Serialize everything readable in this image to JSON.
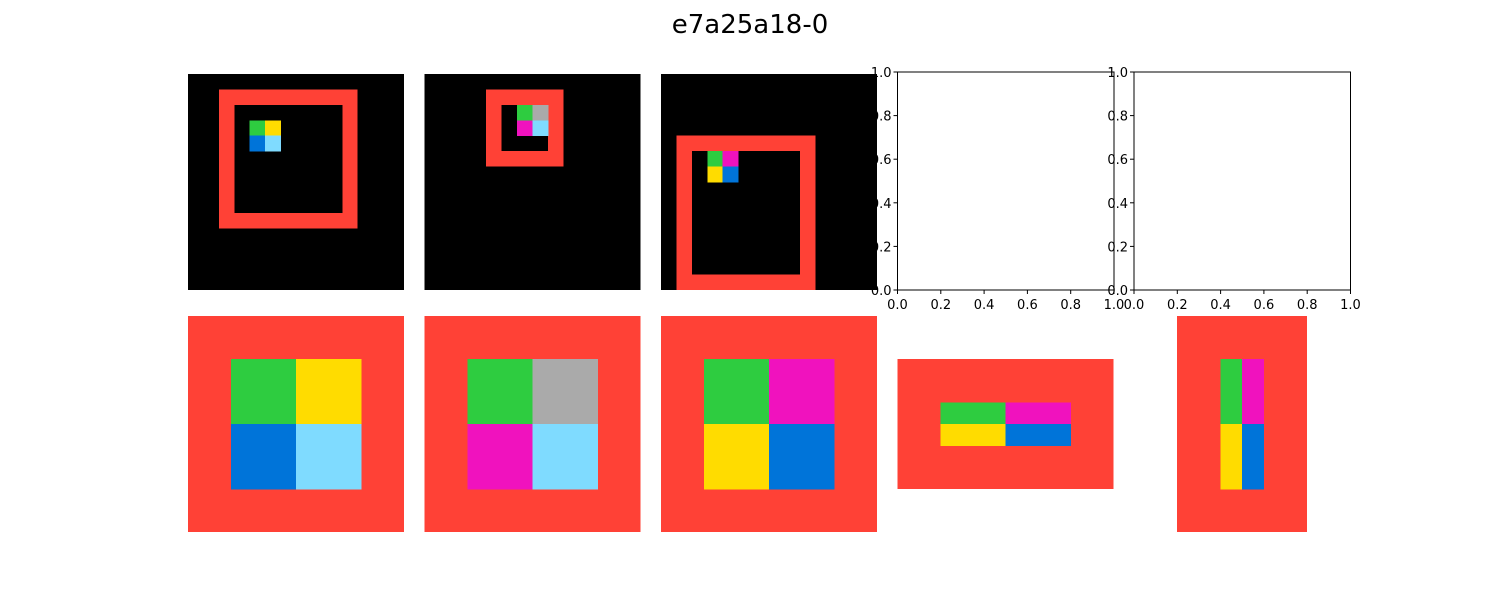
{
  "title": "e7a25a18-0",
  "colors": {
    "0": "#000000",
    "1": "#0074D9",
    "2": "#FF4136",
    "3": "#2ECC40",
    "4": "#FFDC00",
    "5": "#AAAAAA",
    "6": "#F012BE",
    "7": "#FF851B",
    "8": "#7FDBFF",
    "9": "#870C25"
  },
  "grids": {
    "inputs": [
      {
        "rows": 14,
        "cols": 14,
        "frame": {
          "r0": 1,
          "c0": 2,
          "r1": 10,
          "c1": 11
        },
        "cells": [
          {
            "r": 3,
            "c": 4,
            "v": 3
          },
          {
            "r": 3,
            "c": 5,
            "v": 4
          },
          {
            "r": 4,
            "c": 4,
            "v": 1
          },
          {
            "r": 4,
            "c": 5,
            "v": 8
          }
        ]
      },
      {
        "rows": 14,
        "cols": 14,
        "frame": {
          "r0": 1,
          "c0": 4,
          "r1": 6,
          "c1": 9
        },
        "cells": [
          {
            "r": 2,
            "c": 6,
            "v": 3
          },
          {
            "r": 2,
            "c": 7,
            "v": 5
          },
          {
            "r": 3,
            "c": 6,
            "v": 6
          },
          {
            "r": 3,
            "c": 7,
            "v": 8
          }
        ]
      },
      {
        "rows": 14,
        "cols": 14,
        "frame": {
          "r0": 4,
          "c0": 1,
          "r1": 14,
          "c1": 10
        },
        "cells": [
          {
            "r": 5,
            "c": 3,
            "v": 3
          },
          {
            "r": 5,
            "c": 4,
            "v": 6
          },
          {
            "r": 6,
            "c": 3,
            "v": 4
          },
          {
            "r": 6,
            "c": 4,
            "v": 1
          }
        ]
      }
    ],
    "outputs": [
      {
        "rows": 10,
        "cols": 10,
        "border": 2,
        "quad": [
          [
            3,
            4
          ],
          [
            1,
            8
          ]
        ]
      },
      {
        "rows": 10,
        "cols": 10,
        "border": 2,
        "quad": [
          [
            3,
            5
          ],
          [
            6,
            8
          ]
        ]
      },
      {
        "rows": 10,
        "cols": 10,
        "border": 2,
        "quad": [
          [
            3,
            6
          ],
          [
            4,
            1
          ]
        ]
      },
      {
        "rows": 6,
        "cols": 10,
        "border": 2,
        "quad": [
          [
            3,
            6
          ],
          [
            4,
            1
          ]
        ]
      },
      {
        "rows": 10,
        "cols": 6,
        "border": 2,
        "quad": [
          [
            3,
            6
          ],
          [
            4,
            1
          ]
        ]
      }
    ]
  },
  "empty_axes": [
    {
      "xticks": [
        "0.0",
        "0.2",
        "0.4",
        "0.6",
        "0.8",
        "1.0"
      ],
      "yticks": [
        "0.0",
        "0.2",
        "0.4",
        "0.6",
        "0.8",
        "1.0"
      ]
    },
    {
      "xticks": [
        "0.0",
        "0.2",
        "0.4",
        "0.6",
        "0.8",
        "1.0"
      ],
      "yticks": [
        "0.0",
        "0.2",
        "0.4",
        "0.6",
        "0.8",
        "1.0"
      ]
    }
  ]
}
